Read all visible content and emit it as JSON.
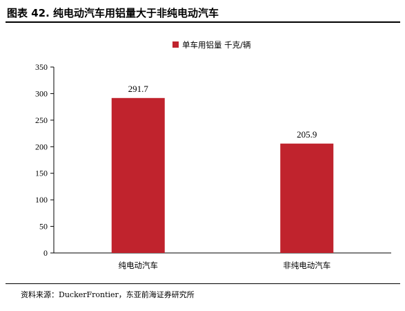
{
  "header": {
    "title": "图表 42. 纯电动汽车用铝量大于非纯电动汽车"
  },
  "footer": {
    "source": "资料来源：DuckerFrontier，东亚前海证券研究所"
  },
  "colors": {
    "bar": "#c0232d"
  },
  "chart_data": {
    "type": "bar",
    "categories": [
      "纯电动汽车",
      "非纯电动汽车"
    ],
    "series": [
      {
        "name": "单车用铝量 千克/辆",
        "values": [
          291.7,
          205.9
        ]
      }
    ],
    "data_labels": [
      "291.7",
      "205.9"
    ],
    "ylim": [
      0,
      350
    ],
    "yticks": [
      0,
      50,
      100,
      150,
      200,
      250,
      300,
      350
    ],
    "grid": false,
    "legend": "top-center"
  }
}
